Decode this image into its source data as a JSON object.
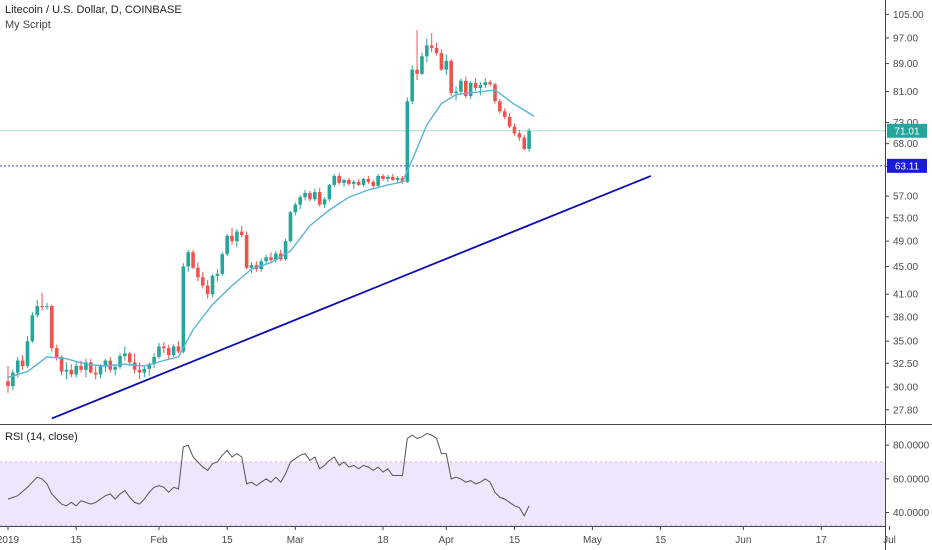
{
  "chart_data": [
    {
      "type": "candlestick",
      "title": "Litecoin / U.S. Dollar, D, COINBASE",
      "subtitle": "My Script",
      "y_scale": "log",
      "ylim": [
        26.5,
        108
      ],
      "y_ticks": [
        "105.00",
        "97.00",
        "89.00",
        "81.00",
        "73.00",
        "68.00",
        "63.00",
        "57.00",
        "53.00",
        "49.00",
        "45.00",
        "41.00",
        "38.00",
        "35.00",
        "32.50",
        "30.00",
        "27.80"
      ],
      "last_price_label": "71.01",
      "horizontal_line_label": "63.11",
      "horizontal_line_value": 63.11,
      "x_ticks": [
        "2019",
        "15",
        "Feb",
        "15",
        "Mar",
        "18",
        "Apr",
        "15",
        "May",
        "15",
        "Jun",
        "17",
        "Jul"
      ],
      "x_tick_days": [
        0,
        14,
        31,
        45,
        59,
        77,
        90,
        104,
        120,
        134,
        151,
        167,
        181
      ],
      "ohlc": [
        [
          0,
          30.6,
          32.2,
          29.4,
          30.1
        ],
        [
          1,
          30.1,
          31.8,
          29.7,
          31.5
        ],
        [
          2,
          31.5,
          33.2,
          31.0,
          32.8
        ],
        [
          3,
          32.8,
          33.4,
          31.8,
          32.2
        ],
        [
          4,
          32.2,
          35.6,
          32.0,
          35.0
        ],
        [
          5,
          35.0,
          38.6,
          34.8,
          38.2
        ],
        [
          6,
          38.2,
          40.2,
          37.9,
          39.4
        ],
        [
          7,
          39.4,
          41.2,
          38.8,
          39.3
        ],
        [
          8,
          39.3,
          39.8,
          38.9,
          39.4
        ],
        [
          9,
          39.4,
          39.6,
          33.8,
          34.2
        ],
        [
          10,
          34.2,
          34.6,
          32.8,
          33.2
        ],
        [
          11,
          33.2,
          33.4,
          31.2,
          31.6
        ],
        [
          12,
          31.6,
          32.6,
          30.8,
          31.8
        ],
        [
          13,
          31.8,
          32.4,
          31.0,
          31.3
        ],
        [
          14,
          31.3,
          32.6,
          31.0,
          32.2
        ],
        [
          15,
          32.2,
          32.8,
          31.5,
          31.8
        ],
        [
          16,
          31.8,
          33.0,
          31.0,
          32.6
        ],
        [
          17,
          32.6,
          33.0,
          31.4,
          31.5
        ],
        [
          18,
          31.5,
          32.2,
          30.8,
          31.3
        ],
        [
          19,
          31.3,
          32.4,
          30.9,
          32.2
        ],
        [
          20,
          32.2,
          33.0,
          31.6,
          32.8
        ],
        [
          21,
          32.8,
          33.2,
          31.5,
          31.8
        ],
        [
          22,
          31.8,
          32.4,
          31.2,
          32.1
        ],
        [
          23,
          32.1,
          33.6,
          31.9,
          33.3
        ],
        [
          24,
          33.3,
          34.4,
          32.8,
          33.6
        ],
        [
          25,
          33.6,
          33.8,
          32.2,
          32.6
        ],
        [
          26,
          32.6,
          33.6,
          31.4,
          31.8
        ],
        [
          27,
          31.8,
          32.6,
          30.8,
          31.5
        ],
        [
          28,
          31.5,
          32.2,
          31.0,
          31.9
        ],
        [
          29,
          31.9,
          32.6,
          31.2,
          32.4
        ],
        [
          30,
          32.4,
          33.6,
          32.0,
          33.2
        ],
        [
          31,
          33.2,
          34.8,
          33.0,
          34.4
        ],
        [
          32,
          34.4,
          34.9,
          33.6,
          34.2
        ],
        [
          33,
          34.2,
          34.6,
          33.0,
          33.4
        ],
        [
          34,
          33.4,
          34.6,
          33.2,
          34.4
        ],
        [
          35,
          34.4,
          35.0,
          33.6,
          33.8
        ],
        [
          36,
          33.8,
          45.5,
          33.6,
          45.0
        ],
        [
          37,
          45.0,
          47.6,
          44.2,
          47.2
        ],
        [
          38,
          47.2,
          47.6,
          44.6,
          44.8
        ],
        [
          39,
          44.8,
          45.6,
          42.8,
          43.4
        ],
        [
          40,
          43.4,
          44.2,
          41.8,
          42.2
        ],
        [
          41,
          42.2,
          43.0,
          40.4,
          41.0
        ],
        [
          42,
          41.0,
          43.8,
          40.6,
          43.6
        ],
        [
          43,
          43.6,
          44.6,
          42.8,
          43.9
        ],
        [
          44,
          43.9,
          47.2,
          43.6,
          46.9
        ],
        [
          45,
          46.9,
          50.2,
          46.6,
          49.9
        ],
        [
          46,
          49.9,
          51.2,
          48.4,
          49.0
        ],
        [
          47,
          49.0,
          51.0,
          48.0,
          50.6
        ],
        [
          48,
          50.6,
          51.6,
          49.6,
          50.0
        ],
        [
          49,
          50.0,
          50.6,
          44.6,
          44.8
        ],
        [
          50,
          44.8,
          45.6,
          44.0,
          45.2
        ],
        [
          51,
          45.2,
          45.8,
          44.2,
          44.6
        ],
        [
          52,
          44.6,
          46.2,
          44.2,
          45.8
        ],
        [
          53,
          45.8,
          46.8,
          45.2,
          46.4
        ],
        [
          54,
          46.4,
          47.2,
          45.6,
          46.0
        ],
        [
          55,
          46.0,
          47.4,
          45.6,
          47.0
        ],
        [
          56,
          47.0,
          47.6,
          45.8,
          46.1
        ],
        [
          57,
          46.1,
          49.4,
          45.9,
          49.0
        ],
        [
          58,
          49.0,
          54.2,
          48.8,
          54.0
        ],
        [
          59,
          54.0,
          55.8,
          53.4,
          55.4
        ],
        [
          60,
          55.4,
          57.2,
          54.6,
          56.8
        ],
        [
          61,
          56.8,
          58.2,
          56.2,
          57.6
        ],
        [
          62,
          57.6,
          58.0,
          56.0,
          56.4
        ],
        [
          63,
          56.4,
          58.4,
          56.0,
          57.8
        ],
        [
          64,
          57.8,
          58.6,
          55.0,
          55.4
        ],
        [
          65,
          55.4,
          56.8,
          54.8,
          56.4
        ],
        [
          66,
          56.4,
          59.4,
          56.0,
          59.2
        ],
        [
          67,
          59.2,
          61.4,
          58.8,
          61.0
        ],
        [
          68,
          61.0,
          61.6,
          59.2,
          59.6
        ],
        [
          69,
          59.6,
          60.4,
          58.8,
          60.2
        ],
        [
          70,
          60.2,
          60.6,
          59.0,
          59.4
        ],
        [
          71,
          59.4,
          60.2,
          58.4,
          59.8
        ],
        [
          72,
          59.8,
          60.4,
          59.0,
          59.2
        ],
        [
          73,
          59.2,
          60.6,
          58.8,
          60.4
        ],
        [
          74,
          60.4,
          61.0,
          59.4,
          59.8
        ],
        [
          75,
          59.8,
          60.2,
          58.6,
          59.0
        ],
        [
          76,
          59.0,
          61.4,
          58.8,
          61.0
        ],
        [
          77,
          61.0,
          61.4,
          60.0,
          60.4
        ],
        [
          78,
          60.4,
          61.2,
          59.8,
          60.8
        ],
        [
          79,
          60.8,
          61.4,
          60.0,
          60.2
        ],
        [
          80,
          60.2,
          61.0,
          59.6,
          60.6
        ],
        [
          81,
          60.6,
          61.0,
          59.4,
          59.8
        ],
        [
          82,
          59.8,
          79.4,
          59.6,
          78.4
        ],
        [
          83,
          78.4,
          88.4,
          77.6,
          87.2
        ],
        [
          84,
          87.2,
          99.6,
          84.2,
          86.0
        ],
        [
          85,
          86.0,
          92.4,
          85.6,
          91.2
        ],
        [
          86,
          91.2,
          96.8,
          89.4,
          94.6
        ],
        [
          87,
          94.6,
          98.6,
          92.4,
          93.8
        ],
        [
          88,
          93.8,
          95.6,
          91.4,
          92.2
        ],
        [
          89,
          92.2,
          93.4,
          86.8,
          87.2
        ],
        [
          90,
          87.2,
          91.8,
          85.6,
          89.8
        ],
        [
          91,
          89.8,
          90.4,
          79.8,
          80.6
        ],
        [
          92,
          80.6,
          82.4,
          78.6,
          81.0
        ],
        [
          93,
          81.0,
          84.6,
          80.4,
          84.0
        ],
        [
          94,
          84.0,
          85.2,
          79.2,
          79.8
        ],
        [
          95,
          79.8,
          84.0,
          79.0,
          83.4
        ],
        [
          96,
          83.4,
          84.8,
          81.2,
          82.0
        ],
        [
          97,
          82.0,
          83.6,
          80.0,
          82.8
        ],
        [
          98,
          82.8,
          84.8,
          82.0,
          83.6
        ],
        [
          99,
          83.6,
          84.2,
          82.4,
          83.0
        ],
        [
          100,
          83.0,
          83.4,
          77.8,
          78.4
        ],
        [
          101,
          78.4,
          79.0,
          75.2,
          75.8
        ],
        [
          102,
          75.8,
          76.6,
          73.8,
          74.4
        ],
        [
          103,
          74.4,
          75.4,
          71.6,
          72.0
        ],
        [
          104,
          72.0,
          72.8,
          69.8,
          70.4
        ],
        [
          105,
          70.4,
          71.2,
          68.6,
          69.4
        ],
        [
          106,
          69.4,
          70.0,
          66.4,
          66.8
        ],
        [
          107,
          66.8,
          71.6,
          66.2,
          71.0
        ]
      ],
      "ma_line": [
        [
          0,
          31.0
        ],
        [
          4,
          31.6
        ],
        [
          8,
          33.2
        ],
        [
          12,
          33.0
        ],
        [
          16,
          32.4
        ],
        [
          20,
          32.2
        ],
        [
          24,
          32.4
        ],
        [
          28,
          32.2
        ],
        [
          32,
          32.8
        ],
        [
          35,
          33.2
        ],
        [
          38,
          36.4
        ],
        [
          42,
          39.6
        ],
        [
          46,
          42.2
        ],
        [
          50,
          44.6
        ],
        [
          54,
          45.6
        ],
        [
          58,
          47.4
        ],
        [
          62,
          51.6
        ],
        [
          66,
          54.4
        ],
        [
          70,
          56.8
        ],
        [
          74,
          58.2
        ],
        [
          78,
          59.2
        ],
        [
          81,
          59.8
        ],
        [
          83,
          64.4
        ],
        [
          86,
          72.4
        ],
        [
          89,
          77.8
        ],
        [
          92,
          80.2
        ],
        [
          96,
          80.8
        ],
        [
          100,
          81.4
        ],
        [
          104,
          77.6
        ],
        [
          108,
          74.6
        ]
      ],
      "trendline": {
        "start": [
          9,
          27.0
        ],
        "end": [
          132,
          61.0
        ]
      }
    },
    {
      "type": "line",
      "title": "RSI (14, close)",
      "ylim": [
        32,
        92
      ],
      "y_ticks": [
        80,
        60,
        40
      ],
      "y_tick_labels": [
        "80.0000",
        "60.0000",
        "40.0000"
      ],
      "band": [
        30,
        70
      ],
      "values": [
        [
          0,
          48
        ],
        [
          2,
          50
        ],
        [
          4,
          55
        ],
        [
          5,
          58
        ],
        [
          6,
          61
        ],
        [
          7,
          60
        ],
        [
          8,
          57
        ],
        [
          9,
          51
        ],
        [
          10,
          48
        ],
        [
          11,
          45
        ],
        [
          12,
          44
        ],
        [
          13,
          46
        ],
        [
          14,
          44
        ],
        [
          15,
          47
        ],
        [
          16,
          46
        ],
        [
          17,
          45
        ],
        [
          18,
          46
        ],
        [
          19,
          48
        ],
        [
          20,
          50
        ],
        [
          21,
          51
        ],
        [
          22,
          48
        ],
        [
          23,
          51
        ],
        [
          24,
          53
        ],
        [
          25,
          49
        ],
        [
          26,
          46
        ],
        [
          27,
          45
        ],
        [
          28,
          48
        ],
        [
          29,
          52
        ],
        [
          30,
          55
        ],
        [
          31,
          56
        ],
        [
          32,
          55
        ],
        [
          33,
          52
        ],
        [
          34,
          55
        ],
        [
          35,
          54
        ],
        [
          36,
          79
        ],
        [
          37,
          80
        ],
        [
          38,
          73
        ],
        [
          39,
          70
        ],
        [
          40,
          67
        ],
        [
          41,
          65
        ],
        [
          42,
          69
        ],
        [
          43,
          70
        ],
        [
          44,
          74
        ],
        [
          45,
          77
        ],
        [
          46,
          73
        ],
        [
          47,
          75
        ],
        [
          48,
          73
        ],
        [
          49,
          57
        ],
        [
          50,
          58
        ],
        [
          51,
          56
        ],
        [
          52,
          58
        ],
        [
          53,
          60
        ],
        [
          54,
          58
        ],
        [
          55,
          61
        ],
        [
          56,
          58
        ],
        [
          57,
          63
        ],
        [
          58,
          70
        ],
        [
          59,
          72
        ],
        [
          60,
          74
        ],
        [
          61,
          75
        ],
        [
          62,
          71
        ],
        [
          63,
          73
        ],
        [
          64,
          66
        ],
        [
          65,
          68
        ],
        [
          66,
          71
        ],
        [
          67,
          73
        ],
        [
          68,
          68
        ],
        [
          69,
          70
        ],
        [
          70,
          67
        ],
        [
          71,
          68
        ],
        [
          72,
          66
        ],
        [
          73,
          68
        ],
        [
          74,
          67
        ],
        [
          75,
          65
        ],
        [
          76,
          67
        ],
        [
          77,
          64
        ],
        [
          78,
          66
        ],
        [
          79,
          62
        ],
        [
          80,
          62
        ],
        [
          81,
          62
        ],
        [
          82,
          84
        ],
        [
          83,
          86
        ],
        [
          84,
          84
        ],
        [
          85,
          85
        ],
        [
          86,
          87
        ],
        [
          87,
          86
        ],
        [
          88,
          84
        ],
        [
          89,
          75
        ],
        [
          90,
          75
        ],
        [
          91,
          60
        ],
        [
          92,
          61
        ],
        [
          93,
          60
        ],
        [
          94,
          58
        ],
        [
          95,
          59
        ],
        [
          96,
          57
        ],
        [
          97,
          58
        ],
        [
          98,
          60
        ],
        [
          99,
          58
        ],
        [
          100,
          52
        ],
        [
          101,
          49
        ],
        [
          102,
          48
        ],
        [
          103,
          46
        ],
        [
          104,
          44
        ],
        [
          105,
          43
        ],
        [
          106,
          38
        ],
        [
          107,
          44
        ]
      ]
    }
  ],
  "colors": {
    "up": "#26a69a",
    "down": "#ef5350",
    "ma": "#58b4d8",
    "trend": "#0b0bb0",
    "hline": "#3f4fd8",
    "price_label_bg": "#26a69a",
    "hline_label_bg": "#1b1bd6",
    "rsi_line": "#555555",
    "rsi_band": "#efe6fb"
  }
}
